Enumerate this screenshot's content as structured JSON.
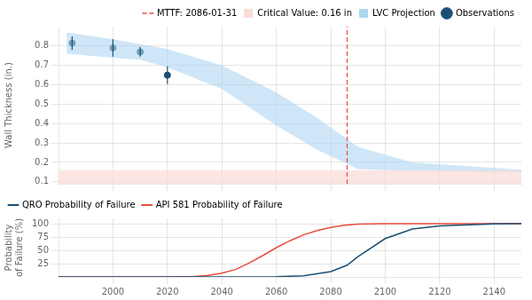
{
  "chart_data": [
    {
      "type": "line",
      "ylabel": "Wall Thickness (in.)",
      "xlim": [
        1980,
        2150
      ],
      "ylim": [
        0.09,
        0.9
      ],
      "xticks": [
        2000,
        2020,
        2040,
        2060,
        2080,
        2100,
        2120,
        2140
      ],
      "yticks": [
        0.1,
        0.2,
        0.3,
        0.4,
        0.5,
        0.6,
        0.7,
        0.8
      ],
      "grid": true,
      "legend": "upper right",
      "tick_labels": "y",
      "series": [
        {
          "name": "MTTF: 2086-01-31",
          "type": "vline",
          "x": 2086,
          "color": "#e74c3c",
          "line_style": "dashed"
        },
        {
          "name": "Critical Value: 0.16 in",
          "type": "band",
          "y": 0.16,
          "color": "#fadbd8"
        },
        {
          "name": "LVC Projection",
          "type": "area",
          "x": [
            1983,
            2000,
            2010,
            2020,
            2040,
            2060,
            2075,
            2090,
            2110,
            2150
          ],
          "upper": [
            0.87,
            0.835,
            0.81,
            0.785,
            0.7,
            0.56,
            0.43,
            0.28,
            0.2,
            0.162
          ],
          "lower": [
            0.76,
            0.74,
            0.73,
            0.69,
            0.58,
            0.39,
            0.265,
            0.165,
            0.155,
            0.15
          ],
          "color": "#aed6f1"
        },
        {
          "name": "Observations",
          "type": "scatter",
          "marker": "circle",
          "x": [
            1985,
            2000,
            2010,
            2020
          ],
          "values": [
            0.815,
            0.79,
            0.77,
            0.65
          ],
          "err_low": [
            0.035,
            0.045,
            0.025,
            0.045
          ],
          "err_high": [
            0.035,
            0.045,
            0.025,
            0.045
          ],
          "color": "#1b4f72"
        }
      ]
    },
    {
      "type": "line",
      "ylabel": "Probability\nof Failure (%)",
      "xlim": [
        1980,
        2150
      ],
      "ylim": [
        0,
        110
      ],
      "xticks": [
        2000,
        2020,
        2040,
        2060,
        2080,
        2100,
        2120,
        2140
      ],
      "yticks": [
        25,
        50,
        75,
        100
      ],
      "grid": true,
      "legend": "upper left",
      "series": [
        {
          "name": "QRO Probability of Failure",
          "color": "#1b4f72",
          "x": [
            1980,
            2000,
            2020,
            2040,
            2060,
            2070,
            2080,
            2086,
            2090,
            2100,
            2110,
            2120,
            2140,
            2150
          ],
          "values": [
            0.0,
            0.0,
            0.0,
            0.05,
            0.5,
            2.0,
            10.0,
            22.0,
            38.0,
            72.0,
            90.0,
            96.0,
            99.5,
            100.0
          ]
        },
        {
          "name": "API 581 Probability of Failure",
          "color": "#e74c3c",
          "x": [
            1980,
            2000,
            2020,
            2030,
            2035,
            2040,
            2045,
            2050,
            2055,
            2060,
            2065,
            2070,
            2075,
            2080,
            2085,
            2090,
            2100,
            2150
          ],
          "values": [
            0.0,
            0.0,
            0.2,
            1.0,
            3.0,
            7.0,
            14.0,
            26.0,
            40.0,
            55.0,
            68.0,
            79.0,
            87.0,
            93.0,
            97.0,
            99.0,
            99.8,
            100.0
          ]
        }
      ]
    }
  ]
}
